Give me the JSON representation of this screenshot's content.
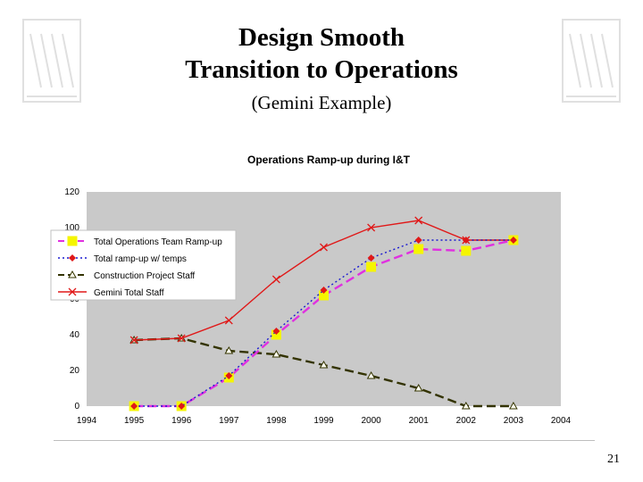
{
  "slide": {
    "title_line1": "Design Smooth",
    "title_line2": "Transition to Operations",
    "subtitle": "(Gemini Example)",
    "page_number": "21"
  },
  "colors": {
    "plot_bg": "#c9c9c9",
    "ops_team": "#e030e0",
    "ramp_temps": "#1a1ad0",
    "construction": "#333300",
    "gemini_total": "#e01818",
    "marker_yellow": "#f5f500"
  },
  "chart_data": {
    "type": "line",
    "title": "Operations Ramp-up during I&T",
    "xlabel": "",
    "ylabel": "",
    "x": [
      1994,
      1995,
      1996,
      1997,
      1998,
      1999,
      2000,
      2001,
      2002,
      2003,
      2004
    ],
    "xlim": [
      1994,
      2004
    ],
    "ylim": [
      0,
      120
    ],
    "yticks": [
      0,
      20,
      40,
      60,
      80,
      100,
      120
    ],
    "grid": false,
    "legend_position": "top-left",
    "series": [
      {
        "name": "Total Operations Team Ramp-up",
        "style": "dashed",
        "marker": "square",
        "points": [
          [
            1995,
            0
          ],
          [
            1996,
            0
          ],
          [
            1997,
            16
          ],
          [
            1998,
            40
          ],
          [
            1999,
            62
          ],
          [
            2000,
            78
          ],
          [
            2001,
            88
          ],
          [
            2002,
            87
          ],
          [
            2003,
            93
          ]
        ]
      },
      {
        "name": "Total ramp-up w/ temps",
        "style": "dotted",
        "marker": "diamond",
        "points": [
          [
            1995,
            0
          ],
          [
            1996,
            0
          ],
          [
            1997,
            17
          ],
          [
            1998,
            42
          ],
          [
            1999,
            65
          ],
          [
            2000,
            83
          ],
          [
            2001,
            93
          ],
          [
            2002,
            93
          ],
          [
            2003,
            93
          ]
        ]
      },
      {
        "name": "Construction Project Staff",
        "style": "dashed",
        "marker": "triangle",
        "points": [
          [
            1995,
            37
          ],
          [
            1996,
            38
          ],
          [
            1997,
            31
          ],
          [
            1998,
            29
          ],
          [
            1999,
            23
          ],
          [
            2000,
            17
          ],
          [
            2001,
            10
          ],
          [
            2002,
            0
          ],
          [
            2003,
            0
          ]
        ]
      },
      {
        "name": "Gemini Total Staff",
        "style": "solid",
        "marker": "x",
        "points": [
          [
            1995,
            37
          ],
          [
            1996,
            38
          ],
          [
            1997,
            48
          ],
          [
            1998,
            71
          ],
          [
            1999,
            89
          ],
          [
            2000,
            100
          ],
          [
            2001,
            104
          ],
          [
            2002,
            93
          ],
          [
            2003,
            93
          ]
        ]
      }
    ]
  }
}
